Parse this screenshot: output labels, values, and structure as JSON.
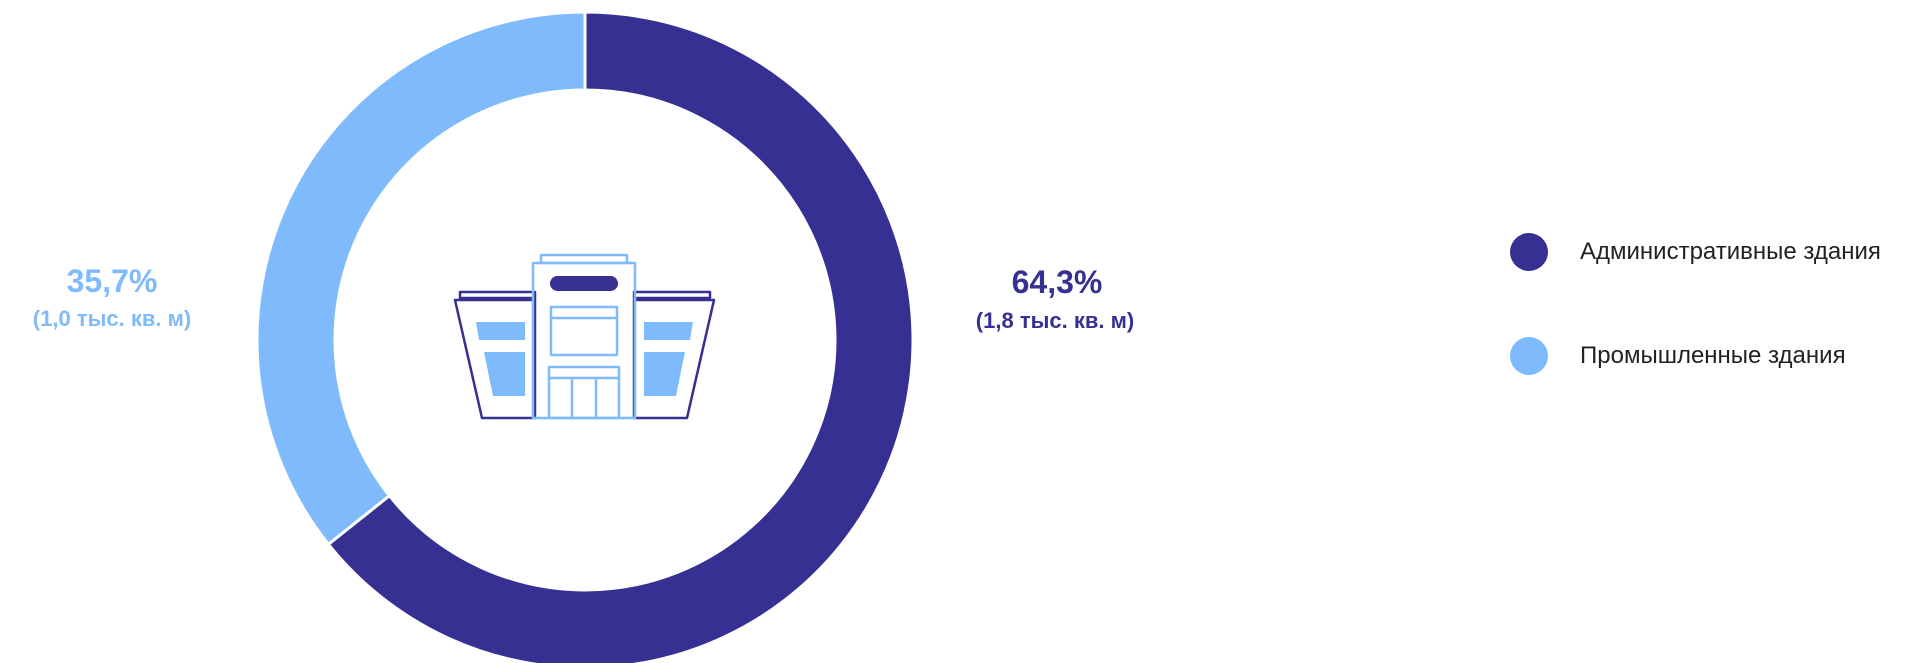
{
  "chart_data": {
    "type": "pie",
    "variant": "donut",
    "categories": [
      "Административные здания",
      "Промышленные здания"
    ],
    "values": [
      64.3,
      35.7
    ],
    "value_labels": [
      "64,3%",
      "35,7%"
    ],
    "sub_labels": [
      "(1,8 тыс. кв. м)",
      "(1,0 тыс. кв. м)"
    ],
    "colors": [
      "#363093",
      "#7FBBFC"
    ],
    "legend_position": "right",
    "center_icon": "building-icon"
  }
}
